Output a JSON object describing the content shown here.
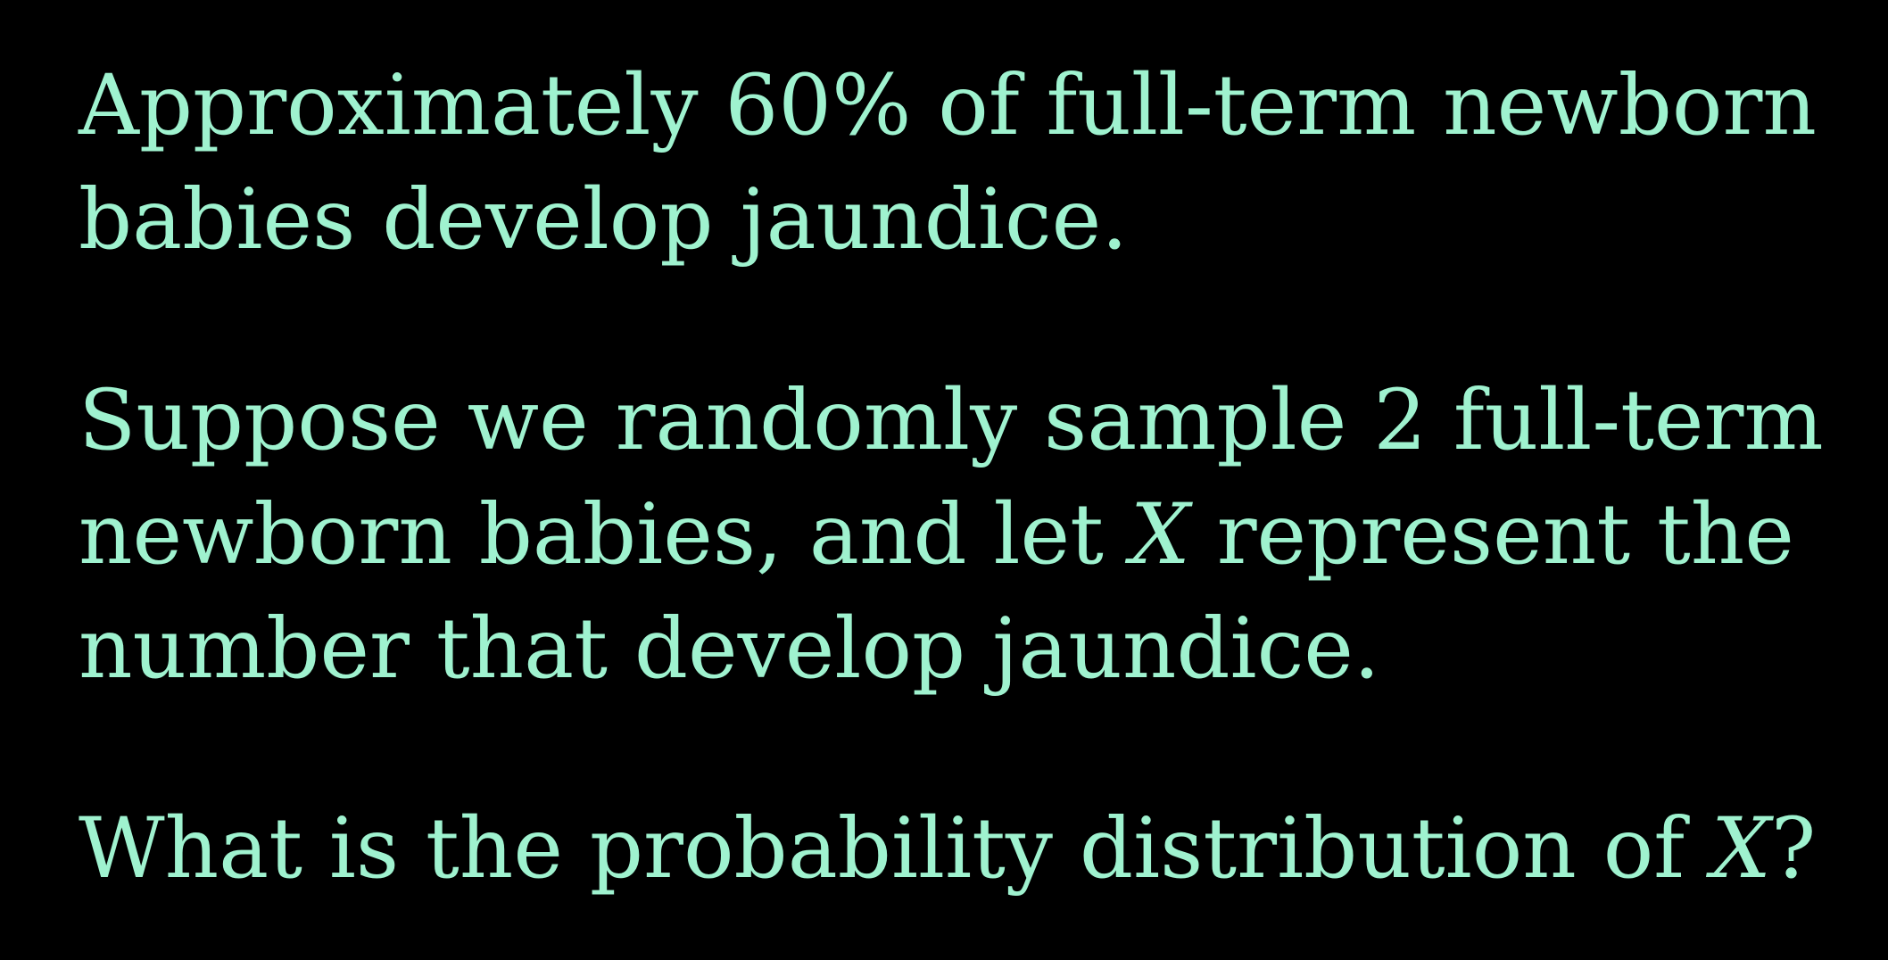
{
  "slide": {
    "text_color": "#9ff2cf",
    "background_color": "#000000",
    "paragraph1": {
      "line1": "Approximately 60% of full-term newborn",
      "line2": "babies develop jaundice."
    },
    "paragraph2": {
      "line1": "Suppose we randomly sample 2 full-term",
      "line2_pre": "newborn babies, and let ",
      "line2_var": "X",
      "line2_post": " represent the",
      "line3": "number that develop jaundice."
    },
    "question": {
      "pre": "What is the probability distribution of ",
      "var": "X",
      "post": "?"
    }
  }
}
